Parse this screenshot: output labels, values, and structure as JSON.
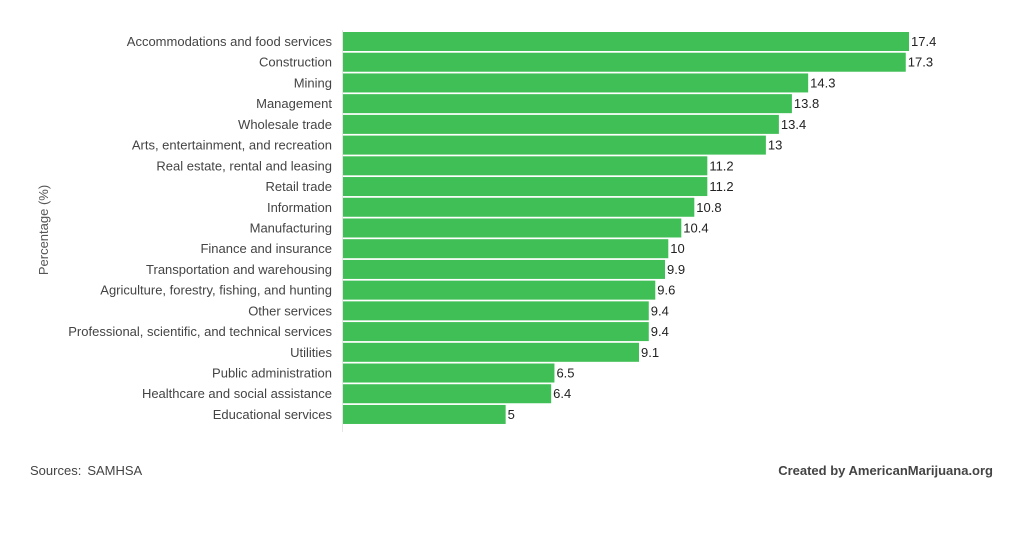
{
  "chart_data": {
    "type": "bar",
    "orientation": "horizontal",
    "ylabel": "Percentage (%)",
    "xlabel": "",
    "xlim": [
      0,
      17.4
    ],
    "bar_color": "#3fbf55",
    "grid": false,
    "categories": [
      "Accommodations and food services",
      "Construction",
      "Mining",
      "Management",
      "Wholesale trade",
      "Arts, entertainment, and recreation",
      "Real estate, rental and leasing",
      "Retail trade",
      "Information",
      "Manufacturing",
      "Finance and insurance",
      "Transportation and warehousing",
      "Agriculture, forestry, fishing, and hunting",
      "Other services",
      "Professional, scientific, and technical services",
      "Utilities",
      "Public administration",
      "Healthcare and social assistance",
      "Educational services"
    ],
    "values": [
      17.4,
      17.3,
      14.3,
      13.8,
      13.4,
      13,
      11.2,
      11.2,
      10.8,
      10.4,
      10,
      9.9,
      9.6,
      9.4,
      9.4,
      9.1,
      6.5,
      6.4,
      5
    ]
  },
  "footer": {
    "sources_label": "Sources:",
    "sources_value": "SAMHSA",
    "credit": "Created by AmericanMarijuana.org"
  }
}
